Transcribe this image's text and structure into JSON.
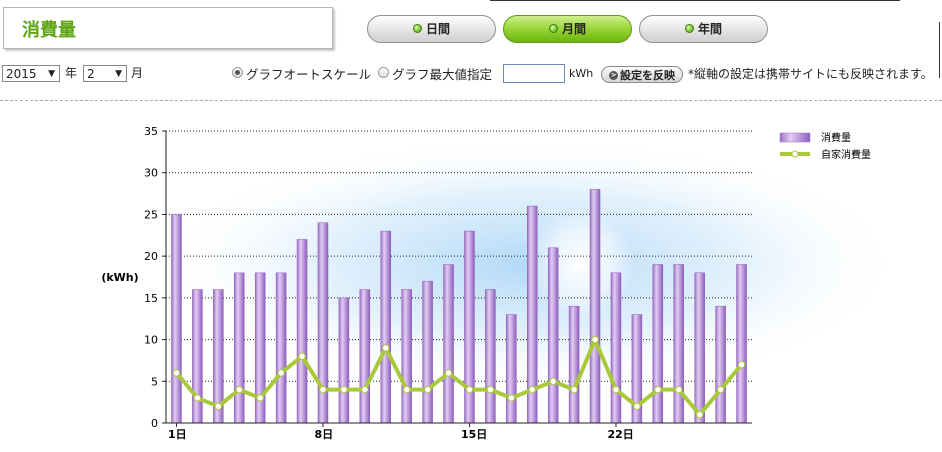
{
  "header": {
    "title": "消費量"
  },
  "period_tabs": [
    {
      "label": "日間",
      "active": false
    },
    {
      "label": "月間",
      "active": true
    },
    {
      "label": "年間",
      "active": false
    }
  ],
  "controls": {
    "year": "2015",
    "year_unit": "年",
    "month": "2",
    "month_unit": "月",
    "radio_auto": {
      "label": "グラフオートスケール",
      "checked": true
    },
    "radio_max": {
      "label": "グラフ最大値指定",
      "checked": false
    },
    "max_value": "",
    "unit": "kWh",
    "reflect_button": "設定を反映",
    "note": "*縦軸の設定は携帯サイトにも反映されます。"
  },
  "chart_data": {
    "type": "bar",
    "ylabel": "(kWh)",
    "ylim": [
      0,
      35
    ],
    "yticks": [
      0,
      5,
      10,
      15,
      20,
      25,
      30,
      35
    ],
    "x_tick_labels": {
      "1": "1日",
      "8": "8日",
      "15": "15日",
      "22": "22日"
    },
    "days": [
      1,
      2,
      3,
      4,
      5,
      6,
      7,
      8,
      9,
      10,
      11,
      12,
      13,
      14,
      15,
      16,
      17,
      18,
      19,
      20,
      21,
      22,
      23,
      24,
      25,
      26,
      27,
      28
    ],
    "series": [
      {
        "name": "消費量",
        "kind": "bar",
        "color": "#b98fd8",
        "values": [
          25,
          16,
          16,
          18,
          18,
          18,
          22,
          24,
          15,
          16,
          23,
          16,
          17,
          19,
          23,
          16,
          13,
          26,
          21,
          14,
          28,
          18,
          13,
          19,
          19,
          18,
          14,
          19
        ]
      },
      {
        "name": "自家消費量",
        "kind": "line",
        "color": "#aac93a",
        "values": [
          6,
          3,
          2,
          4,
          3,
          6,
          8,
          4,
          4,
          4,
          9,
          4,
          4,
          6,
          4,
          4,
          3,
          4,
          5,
          4,
          10,
          4,
          2,
          4,
          4,
          1,
          4,
          7
        ]
      }
    ],
    "legend_position": "top-right",
    "grid": "horizontal dotted"
  }
}
